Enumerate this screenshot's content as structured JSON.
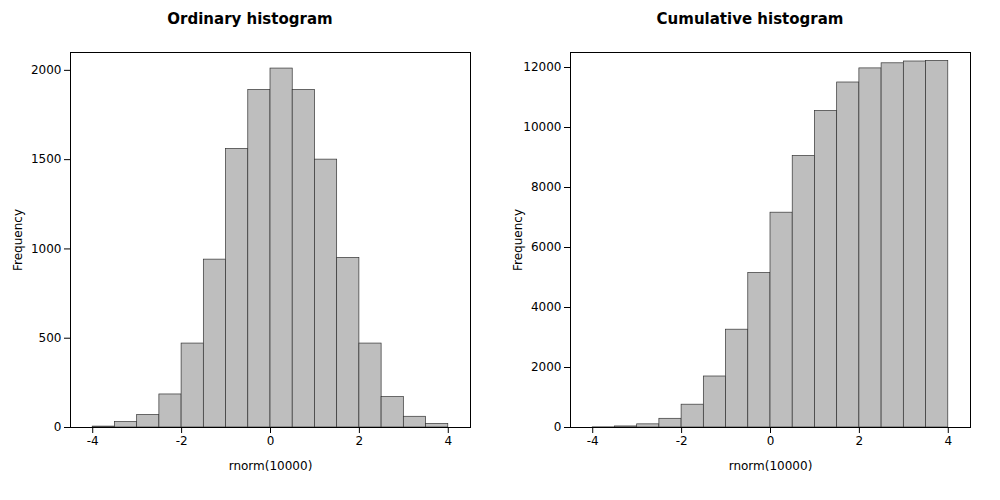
{
  "chart_data": [
    {
      "type": "histogram",
      "title": "Ordinary histogram",
      "xlabel": "rnorm(10000)",
      "ylabel": "Frequency",
      "bins": [
        -4.0,
        -3.5,
        -3.0,
        -2.5,
        -2.0,
        -1.5,
        -1.0,
        -0.5,
        0.0,
        0.5,
        1.0,
        1.5,
        2.0,
        2.5,
        3.0,
        3.5,
        4.0
      ],
      "values": [
        5,
        30,
        70,
        185,
        470,
        940,
        1560,
        1890,
        2010,
        1890,
        1500,
        950,
        470,
        170,
        60,
        20
      ],
      "color": "#bebebe",
      "xlim": [
        -4.5,
        4.5
      ],
      "xticks": [
        -4,
        -2,
        0,
        2,
        4
      ],
      "ylim": [
        0,
        2100
      ],
      "yticks": [
        0,
        500,
        1000,
        1500,
        2000
      ],
      "grid": false
    },
    {
      "type": "histogram",
      "title": "Cumulative histogram",
      "xlabel": "rnorm(10000)",
      "ylabel": "Frequency",
      "bins": [
        -4.0,
        -3.5,
        -3.0,
        -2.5,
        -2.0,
        -1.5,
        -1.0,
        -0.5,
        0.0,
        0.5,
        1.0,
        1.5,
        2.0,
        2.5,
        3.0,
        3.5,
        4.0
      ],
      "values": [
        5,
        35,
        105,
        290,
        760,
        1700,
        3260,
        5150,
        7160,
        9050,
        10550,
        11500,
        11970,
        12140,
        12200,
        12220
      ],
      "color": "#bebebe",
      "xlim": [
        -4.5,
        4.5
      ],
      "xticks": [
        -4,
        -2,
        0,
        2,
        4
      ],
      "ylim": [
        0,
        12500
      ],
      "yticks": [
        0,
        2000,
        4000,
        6000,
        8000,
        10000,
        12000
      ],
      "grid": false
    }
  ]
}
